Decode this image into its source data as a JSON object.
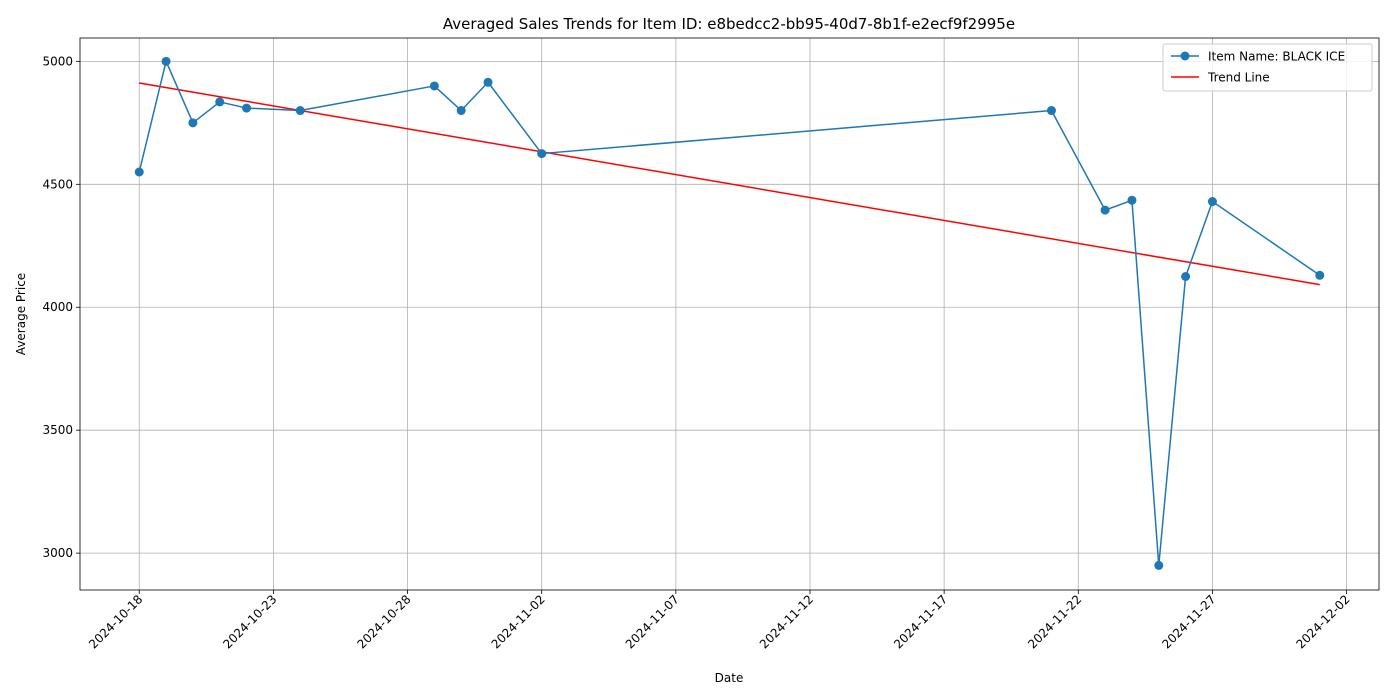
{
  "chart_data": {
    "type": "line",
    "title": "Averaged Sales Trends for Item ID: e8bedcc2-bb95-40d7-8b1f-e2ecf9f2995e",
    "xlabel": "Date",
    "ylabel": "Average Price",
    "xlim": [
      "2024-10-15 19:00",
      "2024-12-03 05:00"
    ],
    "ylim": [
      2850,
      5095
    ],
    "x_ticks": [
      "2024-10-18",
      "2024-10-23",
      "2024-10-28",
      "2024-11-02",
      "2024-11-07",
      "2024-11-12",
      "2024-11-17",
      "2024-11-22",
      "2024-11-27",
      "2024-12-02"
    ],
    "y_ticks": [
      3000,
      3500,
      4000,
      4500,
      5000
    ],
    "grid": true,
    "legend_position": "top-right",
    "series": [
      {
        "name": "Item Name: BLACK ICE",
        "color": "#1f77b4",
        "style": "line-with-markers",
        "points": [
          {
            "x": "2024-10-18",
            "y": 4550
          },
          {
            "x": "2024-10-19",
            "y": 5000
          },
          {
            "x": "2024-10-20",
            "y": 4750
          },
          {
            "x": "2024-10-21",
            "y": 4835
          },
          {
            "x": "2024-10-22",
            "y": 4810
          },
          {
            "x": "2024-10-24",
            "y": 4800
          },
          {
            "x": "2024-10-29",
            "y": 4900
          },
          {
            "x": "2024-10-30",
            "y": 4800
          },
          {
            "x": "2024-10-31",
            "y": 4915
          },
          {
            "x": "2024-11-02",
            "y": 4625
          },
          {
            "x": "2024-11-21",
            "y": 4800
          },
          {
            "x": "2024-11-23",
            "y": 4395
          },
          {
            "x": "2024-11-24",
            "y": 4435
          },
          {
            "x": "2024-11-25",
            "y": 2950
          },
          {
            "x": "2024-11-26",
            "y": 4125
          },
          {
            "x": "2024-11-27",
            "y": 4430
          },
          {
            "x": "2024-12-01",
            "y": 4130
          }
        ]
      },
      {
        "name": "Trend Line",
        "color": "#ff0000",
        "style": "line",
        "points": [
          {
            "x": "2024-10-18",
            "y": 4912
          },
          {
            "x": "2024-12-01",
            "y": 4092
          }
        ]
      }
    ]
  }
}
